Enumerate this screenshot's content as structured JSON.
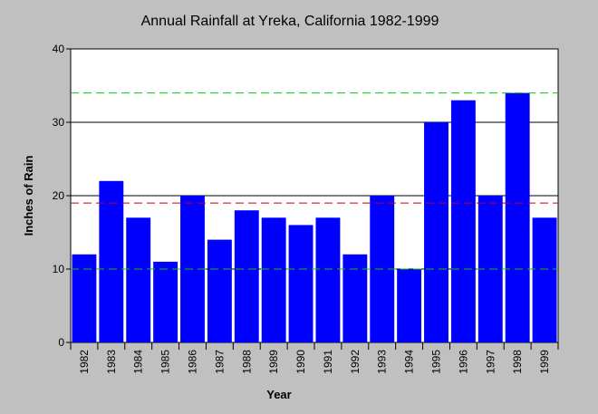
{
  "chart_data": {
    "type": "bar",
    "title": "Annual Rainfall at Yreka, California 1982-1999",
    "xlabel": "Year",
    "ylabel": "Inches of Rain",
    "ylim": [
      0,
      40
    ],
    "yticks": [
      0,
      10,
      20,
      30,
      40
    ],
    "grid": true,
    "categories": [
      "1982",
      "1983",
      "1984",
      "1985",
      "1986",
      "1987",
      "1988",
      "1989",
      "1990",
      "1991",
      "1992",
      "1993",
      "1994",
      "1995",
      "1996",
      "1997",
      "1998",
      "1999"
    ],
    "values": [
      12,
      22,
      17,
      11,
      20,
      14,
      18,
      17,
      16,
      17,
      12,
      20,
      10,
      30,
      33,
      20,
      34,
      17
    ],
    "bar_color": "#0000ff",
    "reference_lines": [
      {
        "value": 34,
        "color": "#00cc00"
      },
      {
        "value": 19,
        "color": "#cc0000"
      },
      {
        "value": 10,
        "color": "#00cc00"
      }
    ]
  }
}
